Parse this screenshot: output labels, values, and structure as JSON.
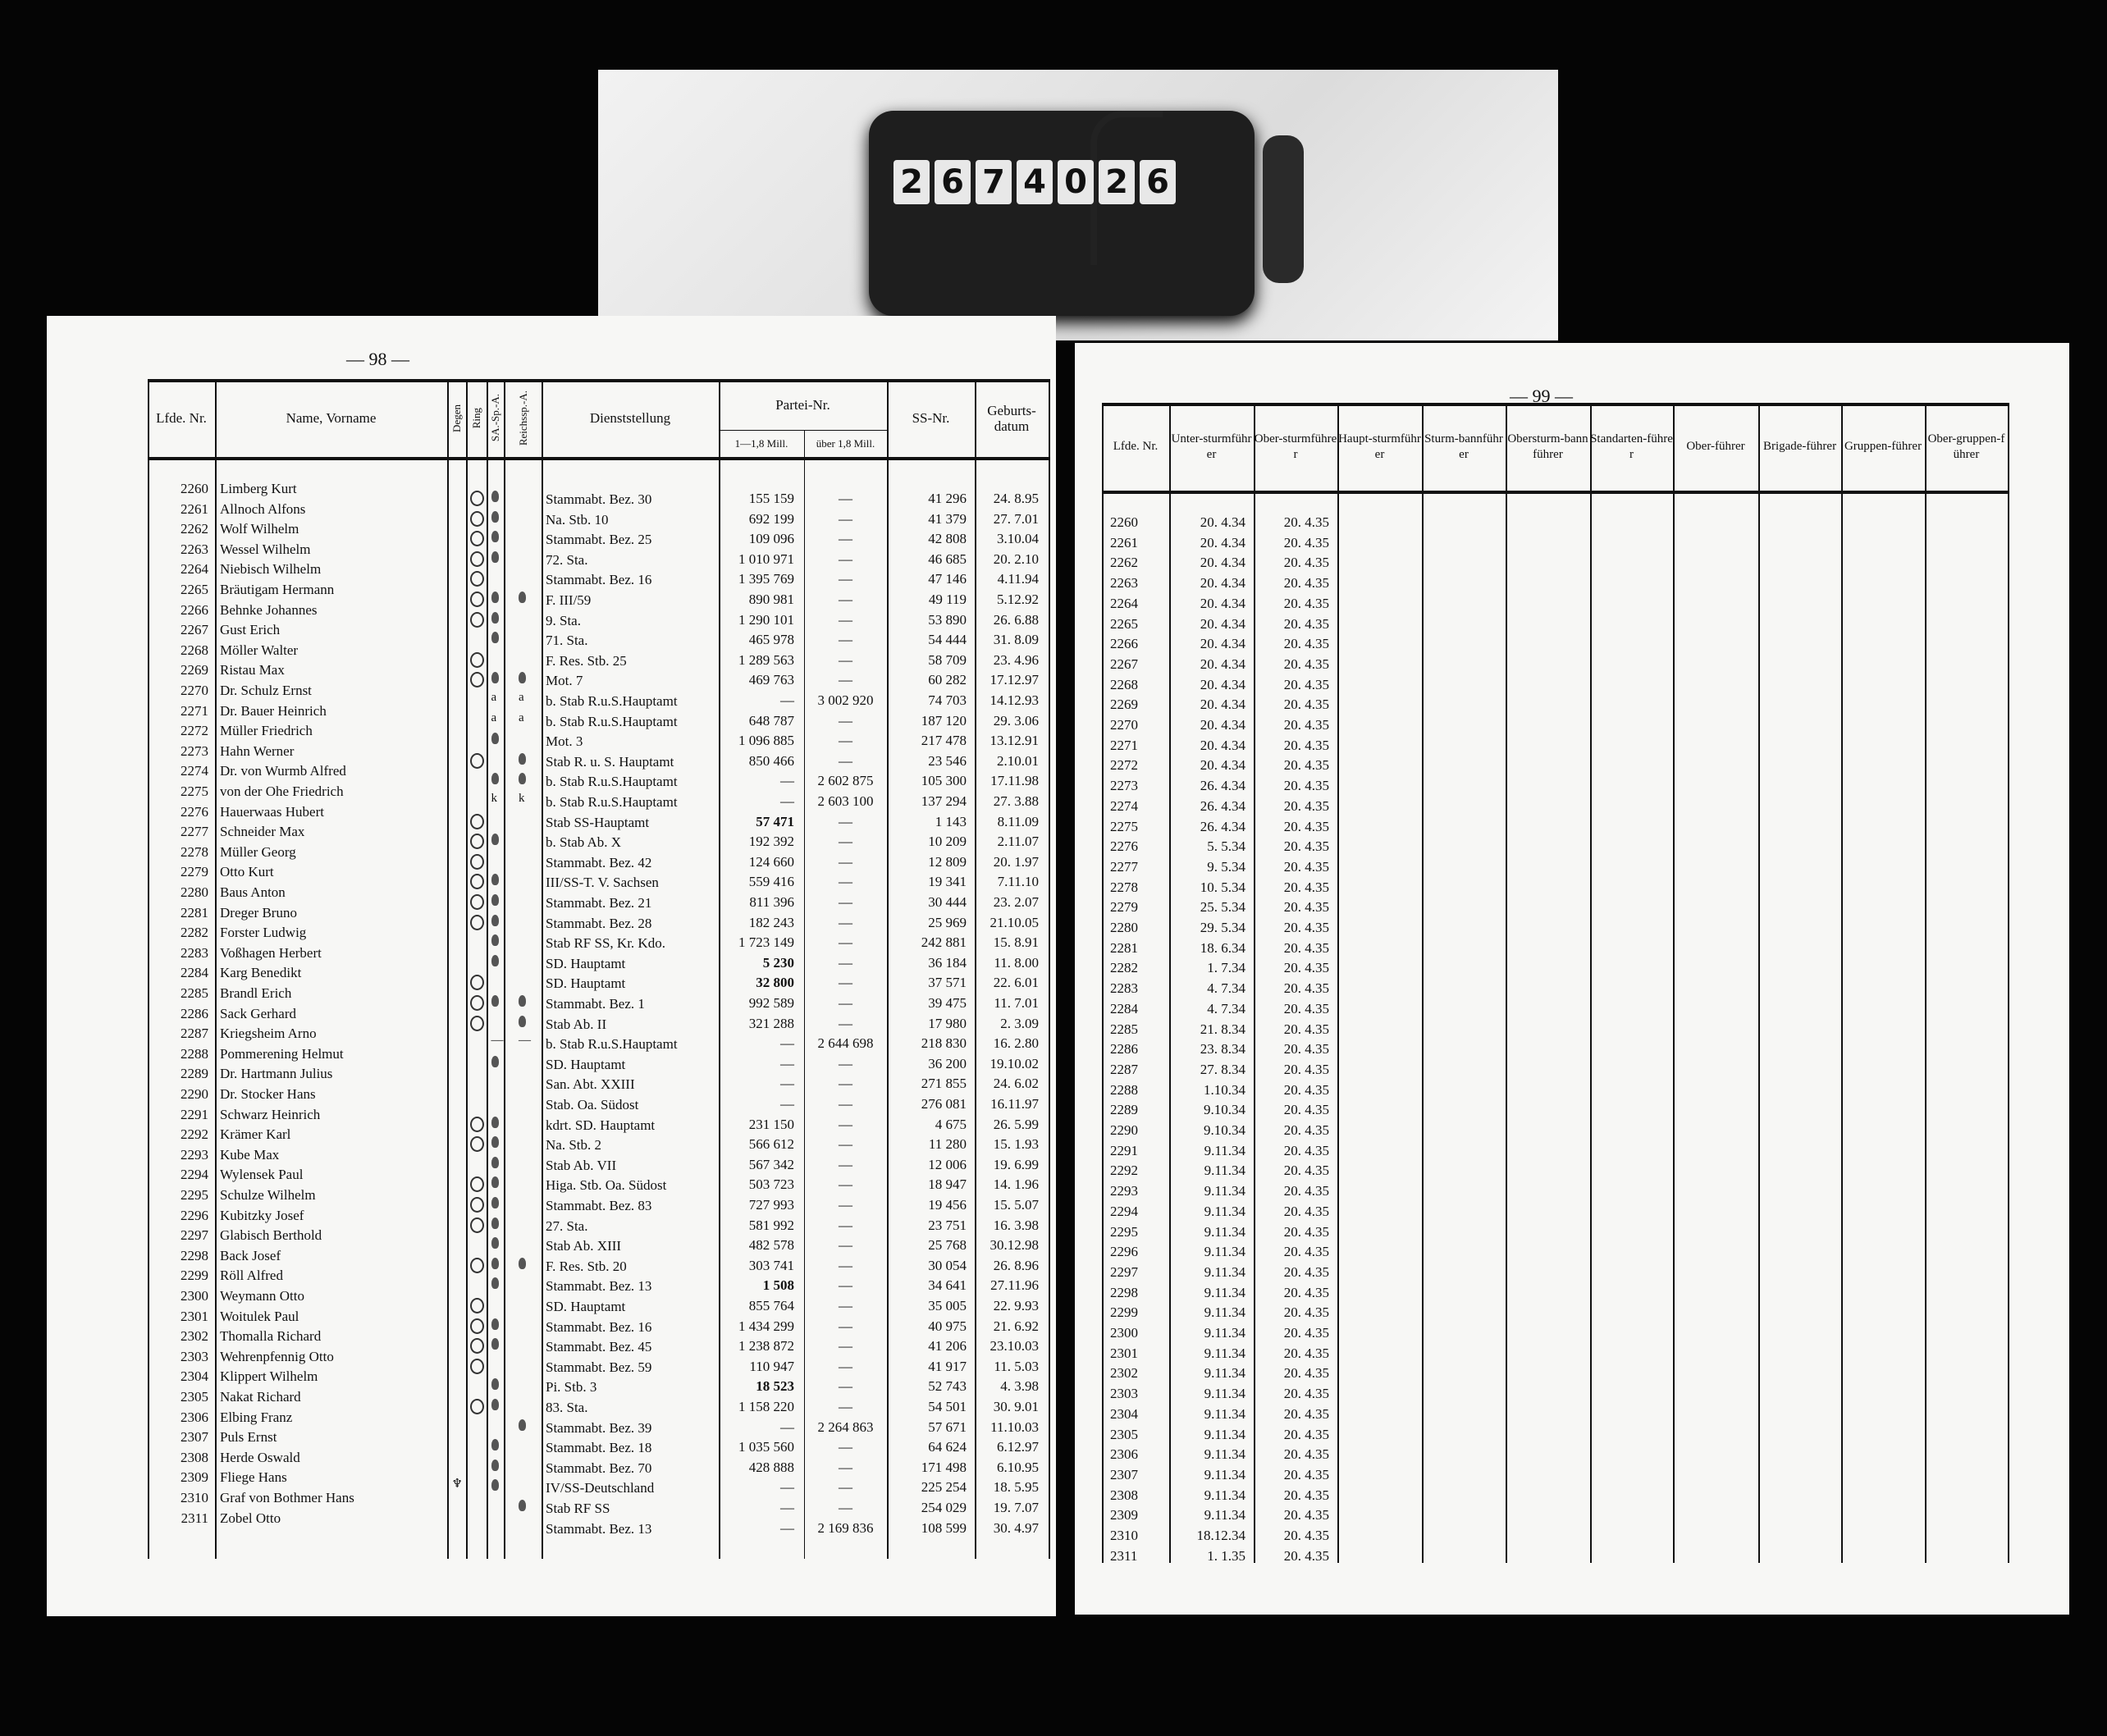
{
  "photo": {
    "counter_digits": [
      "2",
      "6",
      "7",
      "4",
      "0",
      "2",
      "6"
    ]
  },
  "left_page": {
    "page_number": "— 98 —",
    "headers": {
      "lfde": "Lfde. Nr.",
      "name": "Name, Vorname",
      "degen": "Degen",
      "ring": "Ring",
      "sa": "SA.-Sp.-A.",
      "reichs": "Reichssp.-A.",
      "dienst": "Dienststellung",
      "partei": "Partei-Nr.",
      "partei_a": "1—1,8 Mill.",
      "partei_b": "über 1,8 Mill.",
      "ss": "SS-Nr.",
      "geb": "Geburts-datum"
    },
    "rows": [
      {
        "nr": "2260",
        "name": "Limberg Kurt",
        "marks": [
          "",
          "o",
          "s",
          ""
        ],
        "dienst": "Stammabt. Bez. 30",
        "pa": "155 159",
        "pb": "—",
        "ss": "41 296",
        "geb": "24. 8.95"
      },
      {
        "nr": "2261",
        "name": "Allnoch Alfons",
        "marks": [
          "",
          "o",
          "s",
          ""
        ],
        "dienst": "Na. Stb. 10",
        "pa": "692 199",
        "pb": "—",
        "ss": "41 379",
        "geb": "27. 7.01"
      },
      {
        "nr": "2262",
        "name": "Wolf Wilhelm",
        "marks": [
          "",
          "o",
          "s",
          ""
        ],
        "dienst": "Stammabt. Bez. 25",
        "pa": "109 096",
        "pb": "—",
        "ss": "42 808",
        "geb": "3.10.04"
      },
      {
        "nr": "2263",
        "name": "Wessel Wilhelm",
        "marks": [
          "",
          "o",
          "s",
          ""
        ],
        "dienst": "72. Sta.",
        "pa": "1 010 971",
        "pb": "—",
        "ss": "46 685",
        "geb": "20. 2.10"
      },
      {
        "nr": "2264",
        "name": "Niebisch Wilhelm",
        "marks": [
          "",
          "o",
          "",
          ""
        ],
        "dienst": "Stammabt. Bez. 16",
        "pa": "1 395 769",
        "pb": "—",
        "ss": "47 146",
        "geb": "4.11.94"
      },
      {
        "nr": "2265",
        "name": "Bräutigam Hermann",
        "marks": [
          "",
          "o",
          "s",
          "s"
        ],
        "dienst": "F. III/59",
        "pa": "890 981",
        "pb": "—",
        "ss": "49 119",
        "geb": "5.12.92"
      },
      {
        "nr": "2266",
        "name": "Behnke Johannes",
        "marks": [
          "",
          "o",
          "s",
          ""
        ],
        "dienst": "9. Sta.",
        "pa": "1 290 101",
        "pb": "—",
        "ss": "53 890",
        "geb": "26. 6.88"
      },
      {
        "nr": "2267",
        "name": "Gust Erich",
        "marks": [
          "",
          "",
          "s",
          ""
        ],
        "dienst": "71. Sta.",
        "pa": "465 978",
        "pb": "—",
        "ss": "54 444",
        "geb": "31. 8.09"
      },
      {
        "nr": "2268",
        "name": "Möller Walter",
        "marks": [
          "",
          "o",
          "",
          ""
        ],
        "dienst": "F. Res. Stb. 25",
        "pa": "1 289 563",
        "pb": "—",
        "ss": "58 709",
        "geb": "23. 4.96"
      },
      {
        "nr": "2269",
        "name": "Ristau Max",
        "marks": [
          "",
          "o",
          "s",
          "s"
        ],
        "dienst": "Mot. 7",
        "pa": "469 763",
        "pb": "—",
        "ss": "60 282",
        "geb": "17.12.97"
      },
      {
        "nr": "2270",
        "name": "Dr. Schulz Ernst",
        "marks": [
          "",
          "",
          "a",
          "a"
        ],
        "dienst": "b. Stab R.u.S.Hauptamt",
        "pa": "—",
        "pb": "3 002 920",
        "ss": "74 703",
        "geb": "14.12.93"
      },
      {
        "nr": "2271",
        "name": "Dr. Bauer Heinrich",
        "marks": [
          "",
          "",
          "a",
          "a"
        ],
        "dienst": "b. Stab R.u.S.Hauptamt",
        "pa": "648 787",
        "pb": "—",
        "ss": "187 120",
        "geb": "29. 3.06"
      },
      {
        "nr": "2272",
        "name": "Müller Friedrich",
        "marks": [
          "",
          "",
          "s",
          ""
        ],
        "dienst": "Mot. 3",
        "pa": "1 096 885",
        "pb": "—",
        "ss": "217 478",
        "geb": "13.12.91"
      },
      {
        "nr": "2273",
        "name": "Hahn Werner",
        "marks": [
          "",
          "o",
          "",
          "s"
        ],
        "dienst": "Stab R. u. S. Hauptamt",
        "pa": "850 466",
        "pb": "—",
        "ss": "23 546",
        "geb": "2.10.01"
      },
      {
        "nr": "2274",
        "name": "Dr. von Wurmb Alfred",
        "marks": [
          "",
          "",
          "s",
          "s"
        ],
        "dienst": "b. Stab R.u.S.Hauptamt",
        "pa": "—",
        "pb": "2 602 875",
        "ss": "105 300",
        "geb": "17.11.98"
      },
      {
        "nr": "2275",
        "name": "von der Ohe Friedrich",
        "marks": [
          "",
          "",
          "k",
          "k"
        ],
        "dienst": "b. Stab R.u.S.Hauptamt",
        "pa": "—",
        "pb": "2 603 100",
        "ss": "137 294",
        "geb": "27. 3.88"
      },
      {
        "nr": "2276",
        "name": "Hauerwaas Hubert",
        "marks": [
          "",
          "o",
          "",
          ""
        ],
        "dienst": "Stab SS-Hauptamt",
        "pa": "57 471",
        "pa_bold": true,
        "pb": "—",
        "ss": "1 143",
        "geb": "8.11.09"
      },
      {
        "nr": "2277",
        "name": "Schneider Max",
        "marks": [
          "",
          "o",
          "s",
          ""
        ],
        "dienst": "b. Stab Ab. X",
        "pa": "192 392",
        "pb": "—",
        "ss": "10 209",
        "geb": "2.11.07"
      },
      {
        "nr": "2278",
        "name": "Müller Georg",
        "marks": [
          "",
          "o",
          "",
          ""
        ],
        "dienst": "Stammabt. Bez. 42",
        "pa": "124 660",
        "pb": "—",
        "ss": "12 809",
        "geb": "20. 1.97"
      },
      {
        "nr": "2279",
        "name": "Otto Kurt",
        "marks": [
          "",
          "o",
          "s",
          ""
        ],
        "dienst": "III/SS-T. V. Sachsen",
        "pa": "559 416",
        "pb": "—",
        "ss": "19 341",
        "geb": "7.11.10"
      },
      {
        "nr": "2280",
        "name": "Baus Anton",
        "marks": [
          "",
          "o",
          "s",
          ""
        ],
        "dienst": "Stammabt. Bez. 21",
        "pa": "811 396",
        "pb": "—",
        "ss": "30 444",
        "geb": "23. 2.07"
      },
      {
        "nr": "2281",
        "name": "Dreger Bruno",
        "marks": [
          "",
          "o",
          "s",
          ""
        ],
        "dienst": "Stammabt. Bez. 28",
        "pa": "182 243",
        "pb": "—",
        "ss": "25 969",
        "geb": "21.10.05"
      },
      {
        "nr": "2282",
        "name": "Forster Ludwig",
        "marks": [
          "",
          "",
          "s",
          ""
        ],
        "dienst": "Stab RF SS, Kr. Kdo.",
        "pa": "1 723 149",
        "pb": "—",
        "ss": "242 881",
        "geb": "15. 8.91"
      },
      {
        "nr": "2283",
        "name": "Voßhagen Herbert",
        "marks": [
          "",
          "",
          "s",
          ""
        ],
        "dienst": "SD. Hauptamt",
        "pa": "5 230",
        "pa_bold": true,
        "pb": "—",
        "ss": "36 184",
        "geb": "11. 8.00"
      },
      {
        "nr": "2284",
        "name": "Karg Benedikt",
        "marks": [
          "",
          "o",
          "",
          ""
        ],
        "dienst": "SD. Hauptamt",
        "pa": "32 800",
        "pa_bold": true,
        "pb": "—",
        "ss": "37 571",
        "geb": "22. 6.01"
      },
      {
        "nr": "2285",
        "name": "Brandl Erich",
        "marks": [
          "",
          "o",
          "s",
          "s"
        ],
        "dienst": "Stammabt. Bez. 1",
        "pa": "992 589",
        "pb": "—",
        "ss": "39 475",
        "geb": "11. 7.01"
      },
      {
        "nr": "2286",
        "name": "Sack Gerhard",
        "marks": [
          "",
          "o",
          "",
          "s"
        ],
        "dienst": "Stab Ab. II",
        "pa": "321 288",
        "pb": "—",
        "ss": "17 980",
        "geb": "2. 3.09"
      },
      {
        "nr": "2287",
        "name": "Kriegsheim Arno",
        "marks": [
          "",
          "",
          "—",
          "—"
        ],
        "dienst": "b. Stab R.u.S.Hauptamt",
        "pa": "—",
        "pb": "2 644 698",
        "ss": "218 830",
        "geb": "16. 2.80"
      },
      {
        "nr": "2288",
        "name": "Pommerening Helmut",
        "marks": [
          "",
          "",
          "s",
          ""
        ],
        "dienst": "SD. Hauptamt",
        "pa": "—",
        "pb": "—",
        "ss": "36 200",
        "geb": "19.10.02"
      },
      {
        "nr": "2289",
        "name": "Dr. Hartmann Julius",
        "marks": [
          "",
          "",
          "",
          ""
        ],
        "dienst": "San. Abt. XXIII",
        "pa": "—",
        "pb": "—",
        "ss": "271 855",
        "geb": "24. 6.02"
      },
      {
        "nr": "2290",
        "name": "Dr. Stocker Hans",
        "marks": [
          "",
          "",
          "",
          ""
        ],
        "dienst": "Stab. Oa. Südost",
        "pa": "—",
        "pb": "—",
        "ss": "276 081",
        "geb": "16.11.97"
      },
      {
        "nr": "2291",
        "name": "Schwarz Heinrich",
        "marks": [
          "",
          "o",
          "s",
          ""
        ],
        "dienst": "kdrt. SD. Hauptamt",
        "pa": "231 150",
        "pb": "—",
        "ss": "4 675",
        "geb": "26. 5.99"
      },
      {
        "nr": "2292",
        "name": "Krämer Karl",
        "marks": [
          "",
          "o",
          "s",
          ""
        ],
        "dienst": "Na. Stb. 2",
        "pa": "566 612",
        "pb": "—",
        "ss": "11 280",
        "geb": "15. 1.93"
      },
      {
        "nr": "2293",
        "name": "Kube Max",
        "marks": [
          "",
          "",
          "s",
          ""
        ],
        "dienst": "Stab Ab. VII",
        "pa": "567 342",
        "pb": "—",
        "ss": "12 006",
        "geb": "19. 6.99"
      },
      {
        "nr": "2294",
        "name": "Wylensek Paul",
        "marks": [
          "",
          "o",
          "s",
          ""
        ],
        "dienst": "Higa. Stb. Oa. Südost",
        "pa": "503 723",
        "pb": "—",
        "ss": "18 947",
        "geb": "14. 1.96"
      },
      {
        "nr": "2295",
        "name": "Schulze Wilhelm",
        "marks": [
          "",
          "o",
          "s",
          ""
        ],
        "dienst": "Stammabt. Bez. 83",
        "pa": "727 993",
        "pb": "—",
        "ss": "19 456",
        "geb": "15. 5.07"
      },
      {
        "nr": "2296",
        "name": "Kubitzky Josef",
        "marks": [
          "",
          "o",
          "s",
          ""
        ],
        "dienst": "27. Sta.",
        "pa": "581 992",
        "pb": "—",
        "ss": "23 751",
        "geb": "16. 3.98"
      },
      {
        "nr": "2297",
        "name": "Glabisch Berthold",
        "marks": [
          "",
          "",
          "s",
          ""
        ],
        "dienst": "Stab Ab. XIII",
        "pa": "482 578",
        "pb": "—",
        "ss": "25 768",
        "geb": "30.12.98"
      },
      {
        "nr": "2298",
        "name": "Back Josef",
        "marks": [
          "",
          "o",
          "s",
          "s"
        ],
        "dienst": "F. Res. Stb. 20",
        "pa": "303 741",
        "pb": "—",
        "ss": "30 054",
        "geb": "26. 8.96"
      },
      {
        "nr": "2299",
        "name": "Röll Alfred",
        "marks": [
          "",
          "",
          "s",
          ""
        ],
        "dienst": "Stammabt. Bez. 13",
        "pa": "1 508",
        "pa_bold": true,
        "pb": "—",
        "ss": "34 641",
        "geb": "27.11.96"
      },
      {
        "nr": "2300",
        "name": "Weymann Otto",
        "marks": [
          "",
          "o",
          "",
          ""
        ],
        "dienst": "SD. Hauptamt",
        "pa": "855 764",
        "pb": "—",
        "ss": "35 005",
        "geb": "22. 9.93"
      },
      {
        "nr": "2301",
        "name": "Woitulek Paul",
        "marks": [
          "",
          "o",
          "s",
          ""
        ],
        "dienst": "Stammabt. Bez. 16",
        "pa": "1 434 299",
        "pb": "—",
        "ss": "40 975",
        "geb": "21. 6.92"
      },
      {
        "nr": "2302",
        "name": "Thomalla Richard",
        "marks": [
          "",
          "o",
          "s",
          ""
        ],
        "dienst": "Stammabt. Bez. 45",
        "pa": "1 238 872",
        "pb": "—",
        "ss": "41 206",
        "geb": "23.10.03"
      },
      {
        "nr": "2303",
        "name": "Wehrenpfennig Otto",
        "marks": [
          "",
          "o",
          "",
          ""
        ],
        "dienst": "Stammabt. Bez. 59",
        "pa": "110 947",
        "pb": "—",
        "ss": "41 917",
        "geb": "11. 5.03"
      },
      {
        "nr": "2304",
        "name": "Klippert Wilhelm",
        "marks": [
          "",
          "",
          "s",
          ""
        ],
        "dienst": "Pi. Stb. 3",
        "pa": "18 523",
        "pa_bold": true,
        "pb": "—",
        "ss": "52 743",
        "geb": "4. 3.98"
      },
      {
        "nr": "2305",
        "name": "Nakat Richard",
        "marks": [
          "",
          "o",
          "s",
          ""
        ],
        "dienst": "83. Sta.",
        "pa": "1 158 220",
        "pb": "—",
        "ss": "54 501",
        "geb": "30. 9.01"
      },
      {
        "nr": "2306",
        "name": "Elbing Franz",
        "marks": [
          "",
          "",
          "",
          "s"
        ],
        "dienst": "Stammabt. Bez. 39",
        "pa": "—",
        "pb": "2 264 863",
        "ss": "57 671",
        "geb": "11.10.03"
      },
      {
        "nr": "2307",
        "name": "Puls Ernst",
        "marks": [
          "",
          "",
          "s",
          ""
        ],
        "dienst": "Stammabt. Bez. 18",
        "pa": "1 035 560",
        "pb": "—",
        "ss": "64 624",
        "geb": "6.12.97"
      },
      {
        "nr": "2308",
        "name": "Herde Oswald",
        "marks": [
          "",
          "",
          "s",
          ""
        ],
        "dienst": "Stammabt. Bez. 70",
        "pa": "428 888",
        "pb": "—",
        "ss": "171 498",
        "geb": "6.10.95"
      },
      {
        "nr": "2309",
        "name": "Fliege Hans",
        "marks": [
          "d",
          "",
          "s",
          ""
        ],
        "dienst": "IV/SS-Deutschland",
        "pa": "—",
        "pb": "—",
        "ss": "225 254",
        "geb": "18. 5.95"
      },
      {
        "nr": "2310",
        "name": "Graf von Bothmer Hans",
        "marks": [
          "",
          "",
          "",
          "s"
        ],
        "dienst": "Stab RF SS",
        "pa": "—",
        "pb": "—",
        "ss": "254 029",
        "geb": "19. 7.07"
      },
      {
        "nr": "2311",
        "name": "Zobel Otto",
        "marks": [
          "",
          "",
          "",
          ""
        ],
        "dienst": "Stammabt. Bez. 13",
        "pa": "—",
        "pb": "2 169 836",
        "ss": "108 599",
        "geb": "30. 4.97"
      }
    ]
  },
  "right_page": {
    "page_number": "— 99 —",
    "headers": [
      "Lfde. Nr.",
      "Unter-sturmführer",
      "Ober-sturmführer",
      "Haupt-sturmführer",
      "Sturm-bannführer",
      "Obersturm-bannführer",
      "Standarten-führer",
      "Ober-führer",
      "Brigade-führer",
      "Gruppen-führer",
      "Ober-gruppen-führer"
    ],
    "rows": [
      [
        "2260",
        "20. 4.34",
        "20. 4.35"
      ],
      [
        "2261",
        "20. 4.34",
        "20. 4.35"
      ],
      [
        "2262",
        "20. 4.34",
        "20. 4.35"
      ],
      [
        "2263",
        "20. 4.34",
        "20. 4.35"
      ],
      [
        "2264",
        "20. 4.34",
        "20. 4.35"
      ],
      [
        "2265",
        "20. 4.34",
        "20. 4.35"
      ],
      [
        "2266",
        "20. 4.34",
        "20. 4.35"
      ],
      [
        "2267",
        "20. 4.34",
        "20. 4.35"
      ],
      [
        "2268",
        "20. 4.34",
        "20. 4.35"
      ],
      [
        "2269",
        "20. 4.34",
        "20. 4.35"
      ],
      [
        "2270",
        "20. 4.34",
        "20. 4.35"
      ],
      [
        "2271",
        "20. 4.34",
        "20. 4.35"
      ],
      [
        "2272",
        "20. 4.34",
        "20. 4.35"
      ],
      [
        "2273",
        "26. 4.34",
        "20. 4.35"
      ],
      [
        "2274",
        "26. 4.34",
        "20. 4.35"
      ],
      [
        "2275",
        "26. 4.34",
        "20. 4.35"
      ],
      [
        "2276",
        "5. 5.34",
        "20. 4.35"
      ],
      [
        "2277",
        "9. 5.34",
        "20. 4.35"
      ],
      [
        "2278",
        "10. 5.34",
        "20. 4.35"
      ],
      [
        "2279",
        "25. 5.34",
        "20. 4.35"
      ],
      [
        "2280",
        "29. 5.34",
        "20. 4.35"
      ],
      [
        "2281",
        "18. 6.34",
        "20. 4.35"
      ],
      [
        "2282",
        "1. 7.34",
        "20. 4.35"
      ],
      [
        "2283",
        "4. 7.34",
        "20. 4.35"
      ],
      [
        "2284",
        "4. 7.34",
        "20. 4.35"
      ],
      [
        "2285",
        "21. 8.34",
        "20. 4.35"
      ],
      [
        "2286",
        "23. 8.34",
        "20. 4.35"
      ],
      [
        "2287",
        "27. 8.34",
        "20. 4.35"
      ],
      [
        "2288",
        "1.10.34",
        "20. 4.35"
      ],
      [
        "2289",
        "9.10.34",
        "20. 4.35"
      ],
      [
        "2290",
        "9.10.34",
        "20. 4.35"
      ],
      [
        "2291",
        "9.11.34",
        "20. 4.35"
      ],
      [
        "2292",
        "9.11.34",
        "20. 4.35"
      ],
      [
        "2293",
        "9.11.34",
        "20. 4.35"
      ],
      [
        "2294",
        "9.11.34",
        "20. 4.35"
      ],
      [
        "2295",
        "9.11.34",
        "20. 4.35"
      ],
      [
        "2296",
        "9.11.34",
        "20. 4.35"
      ],
      [
        "2297",
        "9.11.34",
        "20. 4.35"
      ],
      [
        "2298",
        "9.11.34",
        "20. 4.35"
      ],
      [
        "2299",
        "9.11.34",
        "20. 4.35"
      ],
      [
        "2300",
        "9.11.34",
        "20. 4.35"
      ],
      [
        "2301",
        "9.11.34",
        "20. 4.35"
      ],
      [
        "2302",
        "9.11.34",
        "20. 4.35"
      ],
      [
        "2303",
        "9.11.34",
        "20. 4.35"
      ],
      [
        "2304",
        "9.11.34",
        "20. 4.35"
      ],
      [
        "2305",
        "9.11.34",
        "20. 4.35"
      ],
      [
        "2306",
        "9.11.34",
        "20. 4.35"
      ],
      [
        "2307",
        "9.11.34",
        "20. 4.35"
      ],
      [
        "2308",
        "9.11.34",
        "20. 4.35"
      ],
      [
        "2309",
        "9.11.34",
        "20. 4.35"
      ],
      [
        "2310",
        "18.12.34",
        "20. 4.35"
      ],
      [
        "2311",
        "1. 1.35",
        "20. 4.35"
      ]
    ]
  }
}
